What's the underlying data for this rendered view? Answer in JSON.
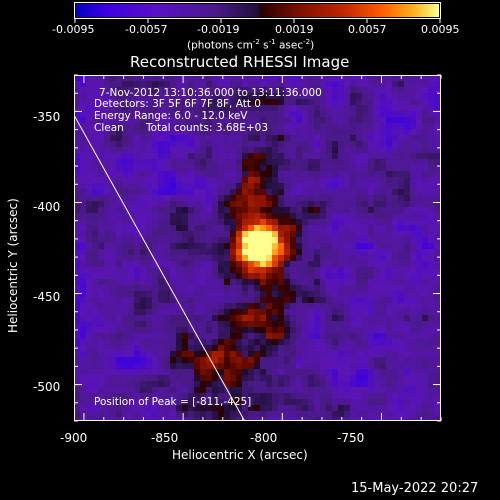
{
  "chart_data": {
    "type": "heatmap",
    "title": "Reconstructed RHESSI Image",
    "xlabel": "Heliocentric X (arcsec)",
    "ylabel": "Heliocentric Y (arcsec)",
    "xlim": [
      -905,
      -720
    ],
    "ylim": [
      -520,
      -330
    ],
    "x_ticks": [
      "-900",
      "-850",
      "-800",
      "-750"
    ],
    "x_tick_values": [
      -900,
      -850,
      -800,
      -750
    ],
    "y_ticks": [
      "-350",
      "-400",
      "-450",
      "-500"
    ],
    "y_tick_values": [
      -350,
      -400,
      -450,
      -500
    ],
    "colorbar": {
      "ticks": [
        "-0.0095",
        "-0.0057",
        "-0.0019",
        "0.0019",
        "0.0057",
        "0.0095"
      ],
      "tick_values": [
        -0.0095,
        -0.0057,
        -0.0019,
        0.0019,
        0.0057,
        0.0095
      ],
      "unit_prefix": "(photons cm",
      "unit_exp1": "-2",
      "unit_mid1": " s",
      "unit_exp2": "-1",
      "unit_mid2": " asec",
      "unit_exp3": "-2",
      "unit_suffix": ")",
      "range": [
        -0.0095,
        0.0095
      ]
    },
    "annotations": {
      "time_range": "7-Nov-2012 13:10:36.000 to 13:11:36.000",
      "detectors": "Detectors: 3F 5F 6F 7F 8F, Att 0",
      "energy": "Energy Range: 6.0 - 12.0 keV",
      "method": "Clean",
      "counts": "Total counts: 3.68E+03",
      "peak": "Position of Peak = [-811,-425]"
    },
    "peak_position": [
      -811,
      -425
    ],
    "limb_line": [
      [
        -905,
        -352
      ],
      [
        -819,
        -520
      ]
    ]
  },
  "footer": {
    "date": "15-May-2022 20:27"
  },
  "colors": {
    "background": "#000000",
    "foreground": "#ffffff",
    "limb": "#ffffff"
  }
}
